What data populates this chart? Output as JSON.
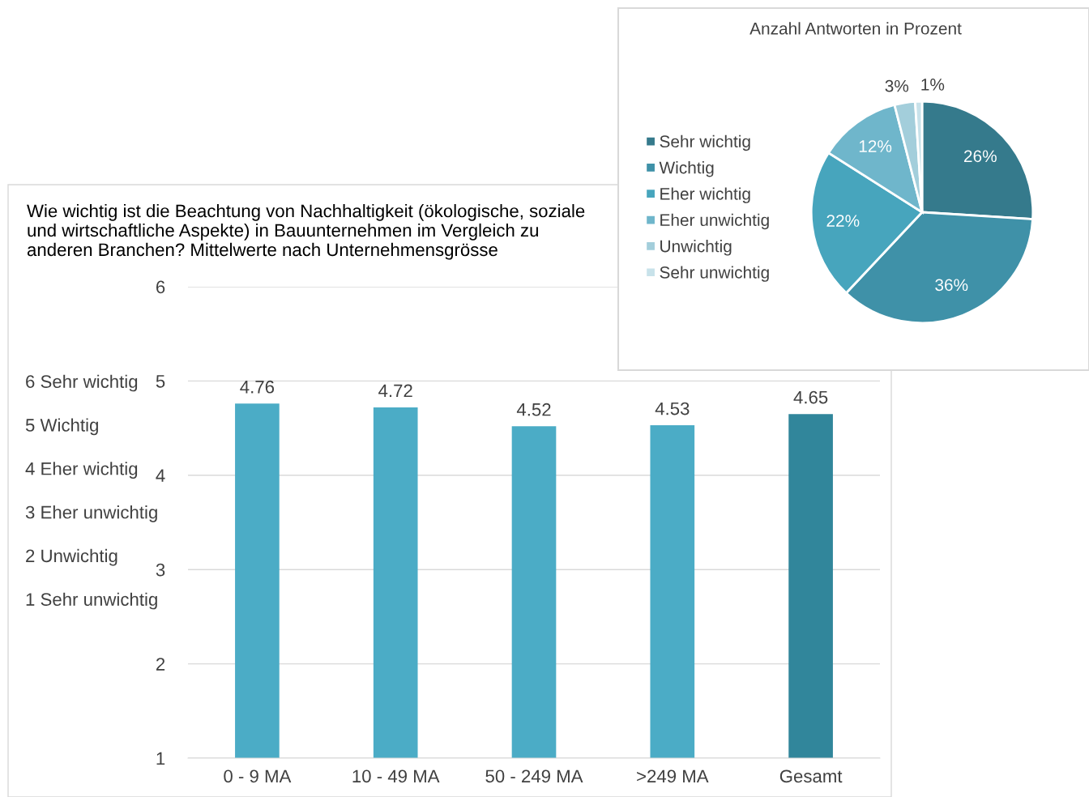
{
  "chart_data": [
    {
      "type": "bar",
      "title": "Wie wichtig ist die Beachtung von Nachhaltigkeit (ökologische, soziale\nund wirtschaftliche Aspekte) in Bauunternehmen im Vergleich zu\nanderen Branchen? Mittelwerte nach Unternehmensgrösse",
      "categories": [
        "0 - 9 MA",
        "10 - 49 MA",
        "50 - 249 MA",
        ">249 MA",
        "Gesamt"
      ],
      "values": [
        4.76,
        4.72,
        4.52,
        4.53,
        4.65
      ],
      "colors": [
        "#4bacc6",
        "#4bacc6",
        "#4bacc6",
        "#4bacc6",
        "#31869b"
      ],
      "ylim": [
        1,
        6
      ],
      "yticks": [
        1,
        2,
        3,
        4,
        5,
        6
      ],
      "grid": "y",
      "data_labels": true,
      "annotations": [
        "6 Sehr wichtig",
        "5 Wichtig",
        "4 Eher wichtig",
        "3 Eher unwichtig",
        "2 Unwichtig",
        "1 Sehr unwichtig"
      ]
    },
    {
      "type": "pie",
      "title": "Anzahl Antworten in Prozent",
      "categories": [
        "Sehr wichtig",
        "Wichtig",
        "Eher wichtig",
        "Eher unwichtig",
        "Unwichtig",
        "Sehr unwichtig"
      ],
      "values": [
        26,
        36,
        22,
        12,
        3,
        1
      ],
      "colors": [
        "#357a8c",
        "#3f91a8",
        "#47a5bd",
        "#6fb6cb",
        "#a3cedb",
        "#c8e2ea"
      ],
      "value_labels": [
        "26%",
        "36%",
        "22%",
        "12%",
        "3%",
        "1%"
      ],
      "legend": "left"
    }
  ]
}
